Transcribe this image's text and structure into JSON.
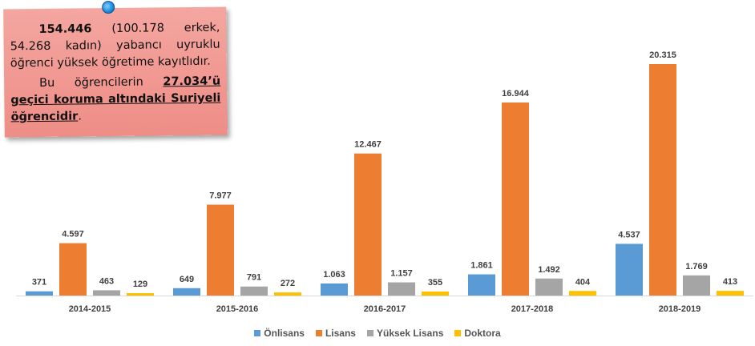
{
  "note": {
    "lead_number": "154.446",
    "lead_text": " (100.178 erkek, 54.268 kadın) yabancı uyruklu öğrenci yüksek öğretime kayıtlıdır.",
    "second_prefix": "Bu öğrencilerin ",
    "second_highlight": "27.034’ü geçici koruma altındaki Suriyeli öğrencidir",
    "second_suffix": "."
  },
  "chart_data": {
    "type": "bar",
    "categories": [
      "2014-2015",
      "2015-2016",
      "2016-2017",
      "2017-2018",
      "2018-2019"
    ],
    "series": [
      {
        "name": "Önlisans",
        "values": [
          371,
          649,
          1063,
          1861,
          4537
        ],
        "labels": [
          "371",
          "649",
          "1.063",
          "1.861",
          "4.537"
        ],
        "color": "#5b9bd5"
      },
      {
        "name": "Lisans",
        "values": [
          4597,
          7977,
          12467,
          16944,
          20315
        ],
        "labels": [
          "4.597",
          "7.977",
          "12.467",
          "16.944",
          "20.315"
        ],
        "color": "#ed7d31"
      },
      {
        "name": "Yüksek Lisans",
        "values": [
          463,
          791,
          1157,
          1492,
          1769
        ],
        "labels": [
          "463",
          "791",
          "1.157",
          "1.492",
          "1.769"
        ],
        "color": "#a5a5a5"
      },
      {
        "name": "Doktora",
        "values": [
          129,
          272,
          355,
          404,
          413
        ],
        "labels": [
          "129",
          "272",
          "355",
          "404",
          "413"
        ],
        "color": "#ffc000"
      }
    ],
    "ylim": [
      0,
      21000
    ],
    "grid": false,
    "legend": "bottom"
  }
}
